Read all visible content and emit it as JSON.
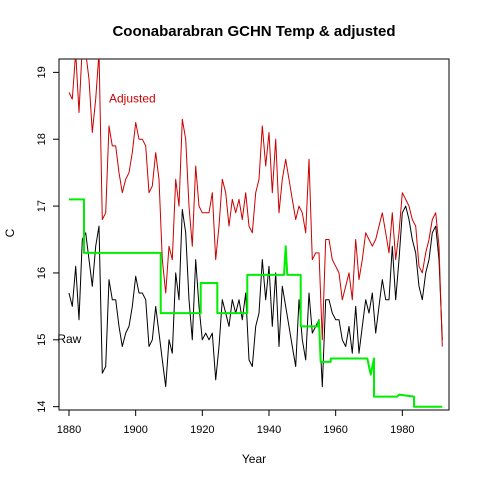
{
  "chart_data": {
    "type": "line",
    "title": "Coonabarabran GCHN Temp & adjusted",
    "xlabel": "Year",
    "ylabel": "C",
    "xlim": [
      1877,
      1994
    ],
    "ylim": [
      13.95,
      19.2
    ],
    "x_ticks": [
      1880,
      1900,
      1920,
      1940,
      1960,
      1980
    ],
    "y_ticks": [
      14,
      15,
      16,
      17,
      18,
      19
    ],
    "grid": false,
    "colors": {
      "raw": "#000000",
      "adjusted": "#cc0000",
      "adjustment": "#00ee00"
    },
    "annotations": [
      {
        "text": "Adjusted",
        "series": "adjusted",
        "x": 1892,
        "y": 18.55
      },
      {
        "text": "Raw",
        "series": "raw",
        "x": 1876.5,
        "y": 14.95
      }
    ],
    "series": [
      {
        "key": "raw",
        "color": "#000000",
        "x": [
          1880,
          1881,
          1882,
          1883,
          1884,
          1885,
          1886,
          1887,
          1888,
          1889,
          1890,
          1891,
          1892,
          1893,
          1894,
          1895,
          1896,
          1897,
          1898,
          1899,
          1900,
          1901,
          1902,
          1903,
          1904,
          1905,
          1906,
          1907,
          1908,
          1909,
          1910,
          1911,
          1912,
          1913,
          1914,
          1915,
          1916,
          1917,
          1918,
          1919,
          1920,
          1921,
          1922,
          1923,
          1924,
          1925,
          1926,
          1927,
          1928,
          1929,
          1930,
          1931,
          1932,
          1933,
          1934,
          1935,
          1936,
          1937,
          1938,
          1939,
          1940,
          1941,
          1942,
          1943,
          1944,
          1945,
          1946,
          1947,
          1948,
          1949,
          1950,
          1951,
          1952,
          1953,
          1954,
          1955,
          1956,
          1957,
          1958,
          1959,
          1960,
          1961,
          1962,
          1963,
          1964,
          1965,
          1966,
          1967,
          1968,
          1969,
          1970,
          1971,
          1972,
          1973,
          1974,
          1975,
          1976,
          1977,
          1978,
          1979,
          1980,
          1981,
          1982,
          1983,
          1984,
          1985,
          1986,
          1987,
          1988,
          1989,
          1990,
          1991,
          1992
        ],
        "values": [
          15.7,
          15.5,
          16.1,
          15.3,
          16.5,
          16.6,
          16.2,
          15.8,
          16.4,
          16.7,
          14.5,
          14.6,
          15.9,
          15.6,
          15.6,
          15.2,
          14.9,
          15.1,
          15.2,
          15.5,
          15.95,
          15.7,
          15.7,
          15.6,
          14.9,
          15.0,
          15.5,
          15.1,
          14.7,
          14.3,
          15.0,
          14.8,
          16.0,
          15.6,
          16.95,
          16.6,
          15.6,
          15.0,
          16.2,
          15.5,
          15.0,
          15.1,
          15.0,
          15.1,
          14.4,
          14.9,
          15.6,
          15.4,
          15.2,
          15.6,
          15.4,
          15.6,
          15.3,
          15.7,
          14.7,
          14.6,
          15.2,
          15.4,
          16.2,
          15.6,
          16.1,
          15.2,
          16.0,
          14.9,
          15.8,
          15.5,
          15.2,
          14.9,
          14.6,
          15.6,
          15.0,
          14.7,
          15.7,
          15.1,
          15.2,
          15.3,
          14.3,
          15.6,
          15.6,
          15.4,
          15.3,
          15.3,
          15.0,
          14.9,
          15.2,
          14.8,
          15.5,
          14.8,
          15.2,
          15.6,
          15.4,
          15.7,
          15.1,
          15.5,
          15.9,
          15.6,
          15.6,
          16.4,
          15.6,
          16.2,
          16.9,
          17.0,
          16.8,
          16.5,
          16.3,
          15.8,
          15.6,
          16.0,
          16.2,
          16.6,
          16.7,
          16.2,
          15.0
        ]
      },
      {
        "key": "adjusted",
        "color": "#cc0000",
        "x": [
          1880,
          1881,
          1882,
          1883,
          1884,
          1885,
          1886,
          1887,
          1888,
          1889,
          1890,
          1891,
          1892,
          1893,
          1894,
          1895,
          1896,
          1897,
          1898,
          1899,
          1900,
          1901,
          1902,
          1903,
          1904,
          1905,
          1906,
          1907,
          1908,
          1909,
          1910,
          1911,
          1912,
          1913,
          1914,
          1915,
          1916,
          1917,
          1918,
          1919,
          1920,
          1921,
          1922,
          1923,
          1924,
          1925,
          1926,
          1927,
          1928,
          1929,
          1930,
          1931,
          1932,
          1933,
          1934,
          1935,
          1936,
          1937,
          1938,
          1939,
          1940,
          1941,
          1942,
          1943,
          1944,
          1945,
          1946,
          1947,
          1948,
          1949,
          1950,
          1951,
          1952,
          1953,
          1954,
          1955,
          1956,
          1957,
          1958,
          1959,
          1960,
          1961,
          1962,
          1963,
          1964,
          1965,
          1966,
          1967,
          1968,
          1969,
          1970,
          1971,
          1972,
          1973,
          1974,
          1975,
          1976,
          1977,
          1978,
          1979,
          1980,
          1981,
          1982,
          1983,
          1984,
          1985,
          1986,
          1987,
          1988,
          1989,
          1990,
          1991,
          1992
        ],
        "values": [
          18.7,
          18.6,
          19.3,
          18.4,
          19.4,
          19.3,
          18.9,
          18.1,
          18.6,
          19.3,
          16.8,
          16.9,
          18.2,
          17.9,
          17.9,
          17.5,
          17.2,
          17.4,
          17.5,
          17.8,
          18.25,
          18.0,
          18.0,
          17.9,
          17.2,
          17.3,
          17.8,
          17.4,
          16.2,
          15.7,
          16.4,
          16.2,
          17.4,
          17.0,
          18.3,
          18.0,
          17.0,
          16.4,
          17.6,
          17.0,
          16.9,
          16.9,
          16.9,
          17.2,
          16.2,
          16.7,
          17.4,
          17.2,
          16.7,
          17.1,
          16.9,
          17.1,
          16.8,
          17.2,
          16.7,
          16.6,
          17.2,
          17.4,
          18.2,
          17.6,
          18.1,
          17.2,
          18.0,
          16.9,
          17.4,
          17.7,
          17.4,
          17.1,
          16.8,
          17.0,
          16.9,
          16.6,
          17.7,
          16.2,
          16.3,
          16.3,
          15.0,
          16.5,
          16.5,
          16.2,
          16.1,
          16.0,
          15.6,
          15.8,
          16.0,
          15.6,
          16.5,
          15.9,
          16.2,
          16.6,
          16.5,
          16.4,
          16.5,
          16.7,
          16.9,
          16.6,
          16.3,
          16.9,
          16.2,
          16.6,
          17.2,
          17.1,
          17.0,
          16.8,
          16.7,
          16.1,
          16.0,
          16.3,
          16.5,
          16.8,
          16.9,
          16.4,
          14.9
        ]
      },
      {
        "key": "adjustment",
        "color": "#00ee00",
        "x": [
          1880,
          1884.5,
          1884.5,
          1907.5,
          1907.5,
          1919.5,
          1919.5,
          1924.5,
          1924.5,
          1933.5,
          1933.5,
          1944.5,
          1945,
          1945.5,
          1949.5,
          1949.5,
          1954.5,
          1955,
          1955.5,
          1958.5,
          1958.5,
          1969.5,
          1970.5,
          1971.5,
          1971.5,
          1978.5,
          1979,
          1983.5,
          1983.5,
          1992
        ],
        "values": [
          17.1,
          17.1,
          16.3,
          16.3,
          15.4,
          15.4,
          15.85,
          15.85,
          15.4,
          15.4,
          15.97,
          15.97,
          16.4,
          15.97,
          15.97,
          15.2,
          15.2,
          15.28,
          14.67,
          14.67,
          14.72,
          14.72,
          14.48,
          14.72,
          14.15,
          14.15,
          14.18,
          14.15,
          14.0,
          14.0
        ]
      }
    ]
  }
}
